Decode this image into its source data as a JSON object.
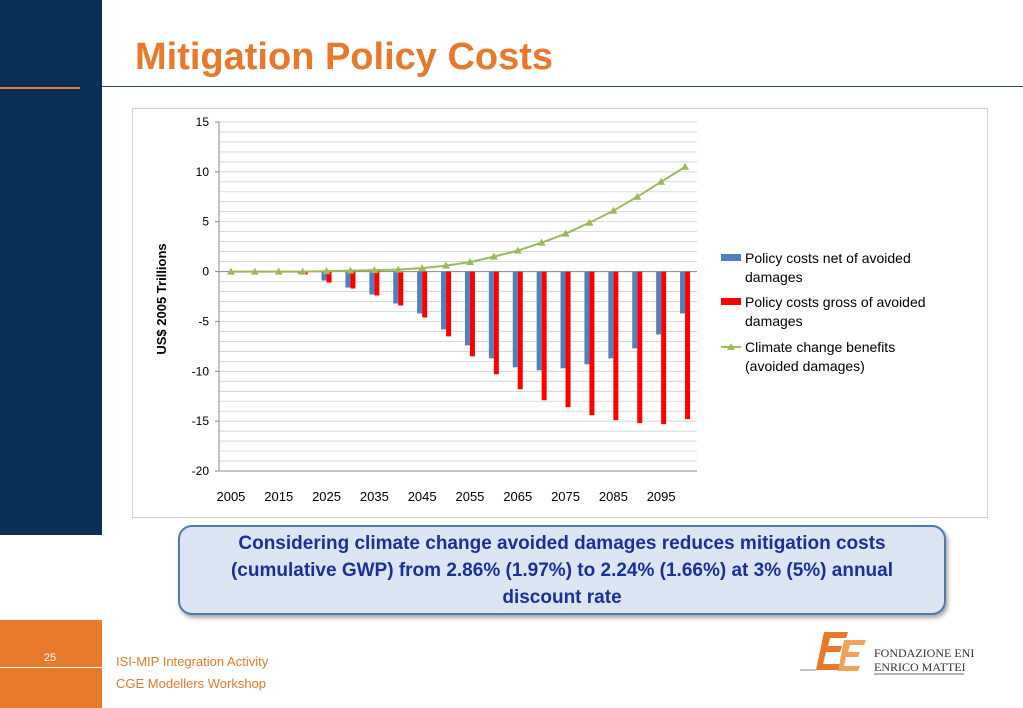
{
  "slide": {
    "title": "Mitigation Policy Costs",
    "callout": "Considering climate change avoided damages reduces mitigation costs (cumulative GWP) from 2.86% (1.97%) to 2.24% (1.66%) at 3% (5%) annual discount rate",
    "page_number": "25",
    "footer_line1": "ISI-MIP Integration Activity",
    "footer_line2": "CGE Modellers Workshop",
    "logo_line1": "FONDAZIONE ENI",
    "logo_line2": "ENRICO MATTEI",
    "colors": {
      "accent": "#e8782a",
      "navy": "#0c2f55",
      "callout_bg": "#dce6f2",
      "callout_text": "#1a2f9c"
    }
  },
  "chart_data": {
    "type": "bar",
    "ylabel": "US$ 2005 Trillions",
    "ylim": [
      -20,
      15
    ],
    "yticks": [
      15,
      10,
      5,
      0,
      -5,
      -10,
      -15,
      -20
    ],
    "x": [
      2005,
      2010,
      2015,
      2020,
      2025,
      2030,
      2035,
      2040,
      2045,
      2050,
      2055,
      2060,
      2065,
      2070,
      2075,
      2080,
      2085,
      2090,
      2095,
      2100
    ],
    "xtick_labels": [
      "2005",
      "2015",
      "2025",
      "2035",
      "2045",
      "2055",
      "2065",
      "2075",
      "2085",
      "2095"
    ],
    "grid": true,
    "legend_position": "right",
    "series": [
      {
        "name": "Policy costs net  of avoided damages",
        "type": "bar",
        "color": "#4f81bd",
        "values": [
          0,
          0,
          0,
          -0.2,
          -0.9,
          -1.6,
          -2.3,
          -3.2,
          -4.2,
          -5.8,
          -7.4,
          -8.7,
          -9.6,
          -9.9,
          -9.7,
          -9.3,
          -8.7,
          -7.7,
          -6.3,
          -4.2
        ]
      },
      {
        "name": "Policy costs gross of avoided damages",
        "type": "bar",
        "color": "#ff0000",
        "values": [
          0,
          0,
          0,
          -0.3,
          -1.1,
          -1.7,
          -2.4,
          -3.4,
          -4.6,
          -6.5,
          -8.5,
          -10.3,
          -11.8,
          -12.9,
          -13.6,
          -14.4,
          -14.9,
          -15.2,
          -15.3,
          -14.8
        ]
      },
      {
        "name": "Climate change benefits (avoided damages)",
        "type": "line",
        "color": "#9bbb59",
        "values": [
          0,
          0,
          0,
          0,
          0.05,
          0.1,
          0.15,
          0.2,
          0.35,
          0.6,
          0.95,
          1.5,
          2.1,
          2.9,
          3.8,
          4.9,
          6.1,
          7.5,
          9.0,
          10.5
        ]
      }
    ]
  }
}
